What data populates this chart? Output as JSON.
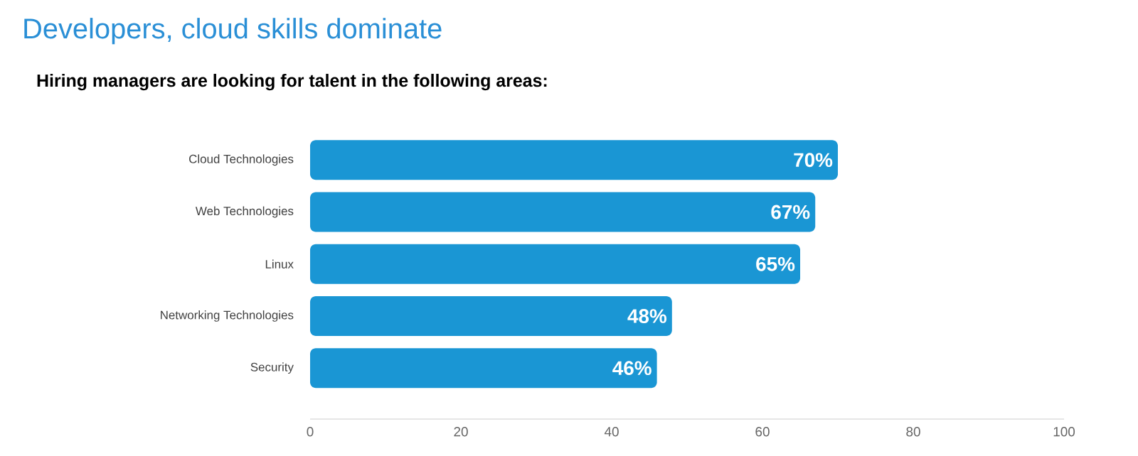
{
  "chart_data": {
    "type": "bar",
    "orientation": "horizontal",
    "title": "Developers, cloud skills dominate",
    "subtitle": "Hiring managers are looking for talent in the following areas:",
    "categories": [
      "Cloud Technologies",
      "Web Technologies",
      "Linux",
      "Networking Technologies",
      "Security"
    ],
    "values": [
      70,
      67,
      65,
      48,
      46
    ],
    "value_labels": [
      "70%",
      "67%",
      "65%",
      "48%",
      "46%"
    ],
    "color": "#1a96d4",
    "xlim": [
      0,
      100
    ],
    "xticks": [
      0,
      20,
      40,
      60,
      80,
      100
    ]
  }
}
